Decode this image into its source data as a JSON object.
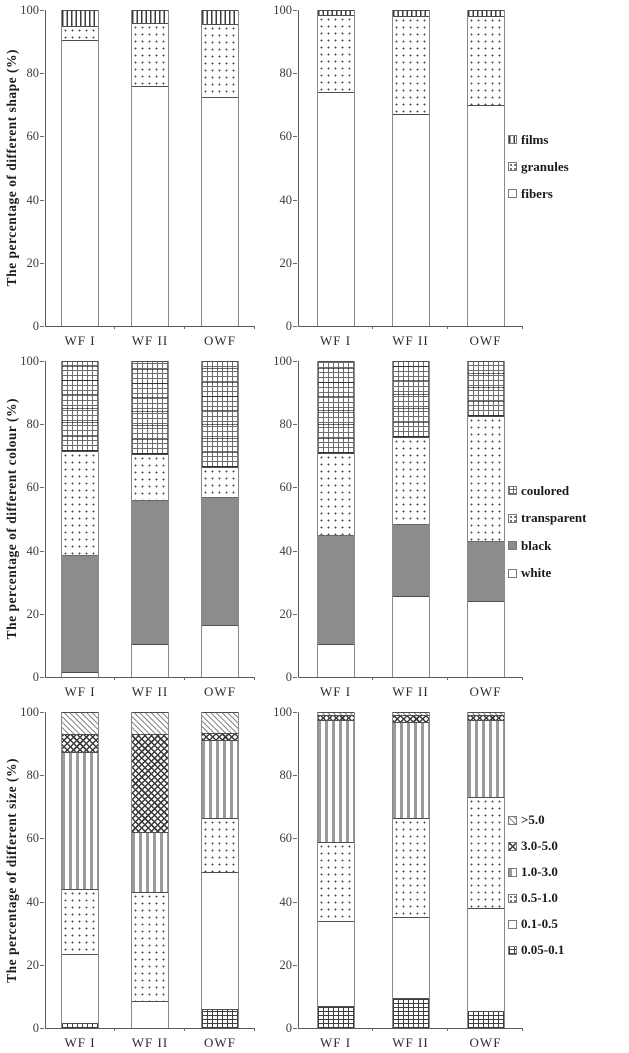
{
  "chart_data": {
    "type": "bar",
    "subtype": "stacked-percentage-figure",
    "unit": "%",
    "grid": false,
    "legend_position": "right",
    "rows": [
      {
        "ylabel": "The percentage of different shape (%)",
        "categories": [
          "WF I",
          "WF II",
          "OWF"
        ],
        "ylim": [
          0,
          100
        ],
        "yticks": [
          0,
          20,
          40,
          60,
          80,
          100
        ],
        "legend": [
          {
            "label": "films",
            "pattern": "vlines"
          },
          {
            "label": "granules",
            "pattern": "dots"
          },
          {
            "label": "fibers",
            "pattern": "white"
          }
        ],
        "charts": [
          {
            "panel": "left",
            "series": [
              {
                "name": "fibers",
                "pattern": "white",
                "values": [
                  90.5,
                  76,
                  72.5
                ]
              },
              {
                "name": "granules",
                "pattern": "dots",
                "values": [
                  4.5,
                  20,
                  23
                ]
              },
              {
                "name": "films",
                "pattern": "vlines",
                "values": [
                  5,
                  4,
                  4.5
                ]
              }
            ]
          },
          {
            "panel": "right",
            "series": [
              {
                "name": "fibers",
                "pattern": "white",
                "values": [
                  74,
                  67,
                  70
                ]
              },
              {
                "name": "granules",
                "pattern": "dots",
                "values": [
                  24.5,
                  31,
                  28
                ]
              },
              {
                "name": "films",
                "pattern": "vlines",
                "values": [
                  1.5,
                  2,
                  2
                ]
              }
            ]
          }
        ]
      },
      {
        "ylabel": "The percentage of different colour (%)",
        "categories": [
          "WF I",
          "WF II",
          "OWF"
        ],
        "ylim": [
          0,
          100
        ],
        "yticks": [
          0,
          20,
          40,
          60,
          80,
          100
        ],
        "legend": [
          {
            "label": "coulored",
            "pattern": "grid-big"
          },
          {
            "label": "transparent",
            "pattern": "dots"
          },
          {
            "label": "black",
            "pattern": "solid"
          },
          {
            "label": "white",
            "pattern": "white"
          }
        ],
        "charts": [
          {
            "panel": "left",
            "series": [
              {
                "name": "white",
                "pattern": "white",
                "values": [
                  1.5,
                  10.5,
                  16.5
                ]
              },
              {
                "name": "black",
                "pattern": "solid",
                "values": [
                  37,
                  45.5,
                  40.5
                ]
              },
              {
                "name": "transparent",
                "pattern": "dots",
                "values": [
                  33,
                  14.5,
                  9.5
                ]
              },
              {
                "name": "coulored",
                "pattern": "grid-big",
                "values": [
                  28.5,
                  29.5,
                  33.5
                ]
              }
            ]
          },
          {
            "panel": "right",
            "series": [
              {
                "name": "white",
                "pattern": "white",
                "values": [
                  10.5,
                  25.5,
                  24
                ]
              },
              {
                "name": "black",
                "pattern": "solid",
                "values": [
                  34.5,
                  23,
                  19
                ]
              },
              {
                "name": "transparent",
                "pattern": "dots",
                "values": [
                  26,
                  27.5,
                  39.5
                ]
              },
              {
                "name": "coulored",
                "pattern": "grid-big",
                "values": [
                  29,
                  24,
                  17.5
                ]
              }
            ]
          }
        ]
      },
      {
        "ylabel": "The percentage of different size (%)",
        "categories": [
          "WF I",
          "WF II",
          "OWF"
        ],
        "ylim": [
          0,
          100
        ],
        "yticks": [
          0,
          20,
          40,
          60,
          80,
          100
        ],
        "legend": [
          {
            "label": ">5.0",
            "pattern": "diag"
          },
          {
            "label": "3.0-5.0",
            "pattern": "diag-dense"
          },
          {
            "label": "1.0-3.0",
            "pattern": "vbars"
          },
          {
            "label": "0.5-1.0",
            "pattern": "dots"
          },
          {
            "label": "0.1-0.5",
            "pattern": "white"
          },
          {
            "label": "0.05-0.1",
            "pattern": "grid"
          }
        ],
        "charts": [
          {
            "panel": "left",
            "series": [
              {
                "name": "0.05-0.1",
                "pattern": "grid",
                "values": [
                  1.5,
                  0,
                  6
                ]
              },
              {
                "name": "0.1-0.5",
                "pattern": "white",
                "values": [
                  22,
                  8.5,
                  43.5
                ]
              },
              {
                "name": "0.5-1.0",
                "pattern": "dots",
                "values": [
                  20.5,
                  34.5,
                  17
                ]
              },
              {
                "name": "1.0-3.0",
                "pattern": "vbars",
                "values": [
                  43.5,
                  19,
                  24.5
                ]
              },
              {
                "name": "3.0-5.0",
                "pattern": "diag-dense",
                "values": [
                  5.5,
                  31,
                  2.5
                ]
              },
              {
                "name": ">5.0",
                "pattern": "diag",
                "values": [
                  7,
                  7,
                  6.5
                ]
              }
            ]
          },
          {
            "panel": "right",
            "series": [
              {
                "name": "0.05-0.1",
                "pattern": "grid",
                "values": [
                  7,
                  9.5,
                  5.5
                ]
              },
              {
                "name": "0.1-0.5",
                "pattern": "white",
                "values": [
                  27,
                  25.5,
                  32.5
                ]
              },
              {
                "name": "0.5-1.0",
                "pattern": "dots",
                "values": [
                  25,
                  31.5,
                  35
                ]
              },
              {
                "name": "1.0-3.0",
                "pattern": "vbars",
                "values": [
                  38.5,
                  30.5,
                  24.5
                ]
              },
              {
                "name": "3.0-5.0",
                "pattern": "diag-dense",
                "values": [
                  1.5,
                  2,
                  1.5
                ]
              },
              {
                "name": ">5.0",
                "pattern": "diag",
                "values": [
                  1,
                  1,
                  1
                ]
              }
            ]
          }
        ]
      }
    ]
  }
}
